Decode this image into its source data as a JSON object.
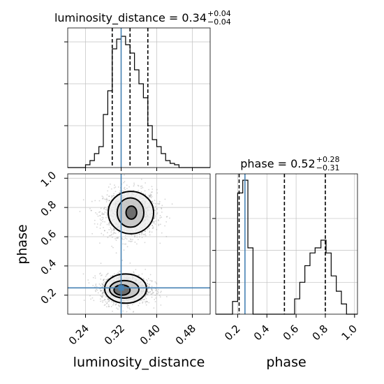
{
  "chart_data": [
    {
      "panel": "luminosity_distance-histogram",
      "type": "histogram",
      "title": {
        "param": "luminosity_distance",
        "value": "0.34",
        "plus": "+0.04",
        "minus": "−0.04"
      },
      "xlim": [
        0.2,
        0.52
      ],
      "bin_edges": [
        0.2,
        0.21,
        0.22,
        0.23,
        0.24,
        0.25,
        0.26,
        0.27,
        0.28,
        0.29,
        0.3,
        0.31,
        0.32,
        0.33,
        0.34,
        0.35,
        0.36,
        0.37,
        0.38,
        0.39,
        0.4,
        0.41,
        0.42,
        0.43,
        0.44,
        0.45,
        0.46,
        0.47,
        0.48,
        0.49,
        0.5,
        0.51,
        0.52
      ],
      "counts": [
        0,
        0,
        0,
        0,
        2,
        5,
        10,
        15,
        38,
        55,
        85,
        92,
        94,
        88,
        82,
        70,
        60,
        50,
        30,
        20,
        15,
        10,
        5,
        3,
        2,
        0,
        0,
        0,
        0,
        0,
        0,
        0
      ],
      "quantiles": [
        0.3,
        0.34,
        0.38
      ],
      "truth": 0.32,
      "ylim": [
        0,
        100
      ],
      "yticks": [
        30,
        60,
        90
      ],
      "grid": true
    },
    {
      "panel": "phase-histogram",
      "type": "histogram",
      "title": {
        "param": "phase",
        "value": "0.52",
        "plus": "+0.28",
        "minus": "−0.31"
      },
      "xlim": [
        0.05,
        1.02
      ],
      "xticks": [
        "0.2",
        "0.4",
        "0.6",
        "0.8",
        "1.0"
      ],
      "xtick_values": [
        0.2,
        0.4,
        0.6,
        0.8,
        1.0
      ],
      "xlabel": "phase",
      "bin_edges": [
        0.05,
        0.09,
        0.125,
        0.165,
        0.2,
        0.235,
        0.27,
        0.305,
        0.34,
        0.375,
        0.41,
        0.445,
        0.48,
        0.52,
        0.555,
        0.59,
        0.625,
        0.66,
        0.695,
        0.73,
        0.77,
        0.805,
        0.84,
        0.875,
        0.91,
        0.945,
        0.98,
        1.02
      ],
      "counts": [
        0,
        0,
        0,
        10,
        95,
        105,
        52,
        0,
        0,
        0,
        0,
        0,
        0,
        0,
        0,
        12,
        25,
        38,
        48,
        52,
        58,
        48,
        30,
        18,
        8,
        0,
        0
      ],
      "quantiles": [
        0.21,
        0.52,
        0.8
      ],
      "truth": 0.25,
      "ylim": [
        0,
        110
      ],
      "yticks": [
        25,
        50,
        75
      ],
      "grid": true
    },
    {
      "panel": "joint-2d",
      "type": "scatter",
      "xlim": [
        0.2,
        0.52
      ],
      "ylim": [
        0.07,
        1.03
      ],
      "xticks": [
        "0.24",
        "0.32",
        "0.40",
        "0.48"
      ],
      "xtick_values": [
        0.24,
        0.32,
        0.4,
        0.48
      ],
      "yticks": [
        "0.2",
        "0.4",
        "0.6",
        "0.8",
        "1.0"
      ],
      "ytick_values": [
        0.2,
        0.4,
        0.6,
        0.8,
        1.0
      ],
      "xlabel": "luminosity_distance",
      "ylabel": "phase",
      "truth": {
        "x": 0.32,
        "y": 0.25
      },
      "modes": [
        {
          "cx": 0.34,
          "cy": 0.76,
          "sx": 0.03,
          "sy": 0.08
        },
        {
          "cx": 0.33,
          "cy": 0.24,
          "sx": 0.028,
          "sy": 0.05
        }
      ],
      "contours": [
        {
          "cx": 0.342,
          "cy": 0.765,
          "rx": 0.051,
          "ry": 0.145
        },
        {
          "cx": 0.341,
          "cy": 0.765,
          "rx": 0.03,
          "ry": 0.1
        },
        {
          "cx": 0.343,
          "cy": 0.765,
          "rx": 0.012,
          "ry": 0.045
        },
        {
          "cx": 0.33,
          "cy": 0.245,
          "rx": 0.047,
          "ry": 0.1
        },
        {
          "cx": 0.327,
          "cy": 0.24,
          "rx": 0.033,
          "ry": 0.06
        },
        {
          "cx": 0.322,
          "cy": 0.235,
          "rx": 0.018,
          "ry": 0.035
        }
      ],
      "colors": {
        "truth": "#4682b4",
        "grid": "#c0c0c0",
        "scatter": "#888888"
      },
      "grid": true
    }
  ]
}
